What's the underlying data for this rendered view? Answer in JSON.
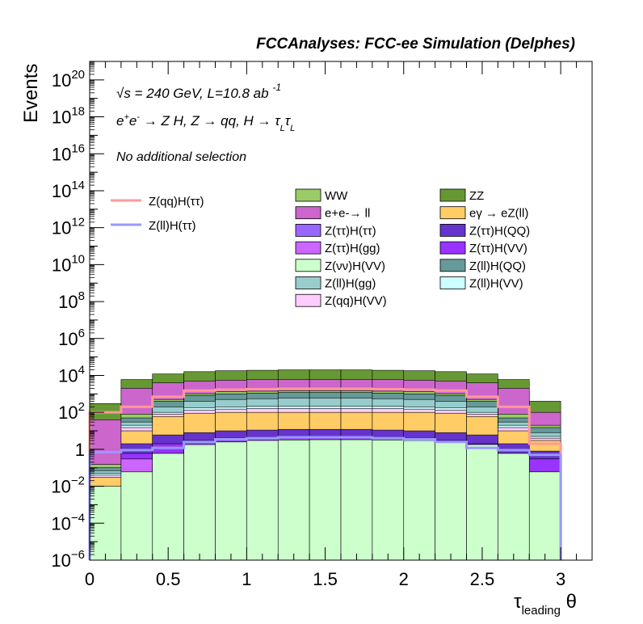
{
  "header": {
    "title": "FCCAnalyses: FCC-ee Simulation (Delphes)"
  },
  "annotations": {
    "energy_line": "√s = 240 GeV, L=10.8 ab -1",
    "process_line": "e+e- → Z H, Z → qq, H → τLτL",
    "selection_line": "No additional selection"
  },
  "chart_data": {
    "type": "area",
    "title": "FCCAnalyses: FCC-ee Simulation (Delphes)",
    "xlabel": "τleading θ",
    "ylabel": "Events",
    "xlim": [
      0,
      3.2
    ],
    "ylim": [
      1e-06,
      1e+21
    ],
    "log_y": true,
    "grid": false,
    "x_tick_labels": [
      "0",
      "0.5",
      "1",
      "1.5",
      "2",
      "2.5",
      "3"
    ],
    "y_tick_labels": [
      "10−6",
      "10−4",
      "10−2",
      "1",
      "102",
      "104",
      "106",
      "108",
      "1010",
      "1012",
      "1014",
      "1016",
      "1018",
      "1020"
    ],
    "bin_edges": [
      0,
      0.2,
      0.4,
      0.6,
      0.8,
      1.0,
      1.2,
      1.4,
      1.6,
      1.8,
      2.0,
      2.2,
      2.4,
      2.6,
      2.8,
      3.0
    ],
    "stack_order_bottom_to_top": [
      "Z(νν)H(VV)",
      "Z(ττ)H(ττ)",
      "Z(ττ)H(gg)",
      "Z(ττ)H(VV)",
      "Z(ττ)H(QQ)",
      "eγ → eZ(ll)",
      "Z(qq)H(VV)",
      "Z(ll)H(VV)",
      "Z(ll)H(gg)",
      "Z(ll)H(QQ)",
      "WW",
      "e+e-→ ll",
      "ZZ"
    ],
    "stack_totals": [
      {
        "name": "Z(νν)H(VV)",
        "color": "#ccffcc",
        "values": [
          0.01,
          0.06,
          0.6,
          1.8,
          2.5,
          3.0,
          3.2,
          3.3,
          3.3,
          3.2,
          3.0,
          2.5,
          1.8,
          0.6,
          0.06
        ]
      },
      {
        "name": "Z(ττ)H(ττ)",
        "color": "#9966ff",
        "values": [
          1e-06,
          0.06,
          0.15,
          0.25,
          0.3,
          0.33,
          0.36,
          0.38,
          0.38,
          0.36,
          0.33,
          0.3,
          0.25,
          0.15,
          0.015
        ]
      },
      {
        "name": "Z(ττ)H(gg)",
        "color": "#cc66ff",
        "values": [
          1e-06,
          0.3,
          0.6,
          0.8,
          1.0,
          1.1,
          1.2,
          1.2,
          1.2,
          1.1,
          1.0,
          0.8,
          0.6,
          0.3,
          0.06
        ]
      },
      {
        "name": "Z(ττ)H(VV)",
        "color": "#9933ff",
        "values": [
          1e-06,
          0.6,
          2,
          3,
          4,
          4.5,
          5,
          5,
          5,
          4.5,
          4,
          3,
          2,
          0.6,
          0.3
        ]
      },
      {
        "name": "Z(ττ)H(QQ)",
        "color": "#6633cc",
        "values": [
          1e-06,
          2,
          6,
          8,
          10,
          11,
          12,
          12,
          12,
          11,
          10,
          8,
          6,
          2,
          0.8
        ]
      },
      {
        "name": "eγ → eZ(ll)",
        "color": "#ffcc66",
        "values": [
          0.03,
          10,
          60,
          90,
          100,
          100,
          100,
          100,
          100,
          100,
          100,
          90,
          60,
          10,
          3
        ]
      },
      {
        "name": "Z(qq)H(VV)",
        "color": "#ffccff",
        "values": [
          0.04,
          15,
          80,
          130,
          150,
          160,
          160,
          160,
          160,
          160,
          150,
          130,
          80,
          15,
          4
        ]
      },
      {
        "name": "Z(ll)H(VV)",
        "color": "#ccffff",
        "values": [
          0.05,
          20,
          100,
          180,
          200,
          210,
          220,
          220,
          220,
          210,
          200,
          180,
          100,
          20,
          5
        ]
      },
      {
        "name": "Z(ll)H(gg)",
        "color": "#99cccc",
        "values": [
          0.07,
          30,
          200,
          400,
          500,
          550,
          600,
          600,
          600,
          550,
          500,
          400,
          200,
          30,
          8
        ]
      },
      {
        "name": "Z(ll)H(QQ)",
        "color": "#669999",
        "values": [
          0.1,
          50,
          400,
          800,
          1000,
          1100,
          1200,
          1200,
          1200,
          1100,
          1000,
          800,
          400,
          50,
          15
        ]
      },
      {
        "name": "WW",
        "color": "#99cc66",
        "values": [
          0.15,
          80,
          500,
          1000,
          1300,
          1400,
          1500,
          1500,
          1500,
          1400,
          1300,
          1000,
          500,
          80,
          20
        ]
      },
      {
        "name": "e+e-→ ll",
        "color": "#cc66cc",
        "values": [
          40,
          2000,
          4000,
          5000,
          5500,
          6000,
          6000,
          6000,
          6000,
          6000,
          5500,
          5000,
          4000,
          2000,
          100
        ]
      },
      {
        "name": "ZZ",
        "color": "#669933",
        "values": [
          300,
          6000,
          12000,
          16000,
          18000,
          19000,
          20000,
          20000,
          20000,
          19000,
          18000,
          16000,
          12000,
          6000,
          400
        ]
      }
    ],
    "overlay_series": [
      {
        "name": "Z(qq)H(ττ)",
        "color": "#ff9999",
        "values": [
          100,
          200,
          700,
          1500,
          1700,
          1800,
          1900,
          1900,
          1900,
          1800,
          1700,
          1500,
          700,
          200,
          2
        ]
      },
      {
        "name": "Z(ll)H(ττ)",
        "color": "#9999ff",
        "values": [
          0.7,
          0.9,
          1.2,
          2.5,
          3.5,
          4.0,
          4.5,
          4.5,
          4.5,
          4.0,
          3.5,
          2.5,
          1.2,
          0.9,
          0.5
        ]
      }
    ],
    "legend_overlay": [
      "Z(qq)H(ττ)",
      "Z(ll)H(ττ)"
    ],
    "legend_stack": [
      [
        "WW",
        "ZZ"
      ],
      [
        "e+e-→ ll",
        "eγ → eZ(ll)"
      ],
      [
        "Z(ττ)H(ττ)",
        "Z(ττ)H(QQ)"
      ],
      [
        "Z(ττ)H(gg)",
        "Z(ττ)H(VV)"
      ],
      [
        "Z(νν)H(VV)",
        "Z(ll)H(QQ)"
      ],
      [
        "Z(ll)H(gg)",
        "Z(ll)H(VV)"
      ],
      [
        "Z(qq)H(VV)",
        ""
      ]
    ]
  }
}
